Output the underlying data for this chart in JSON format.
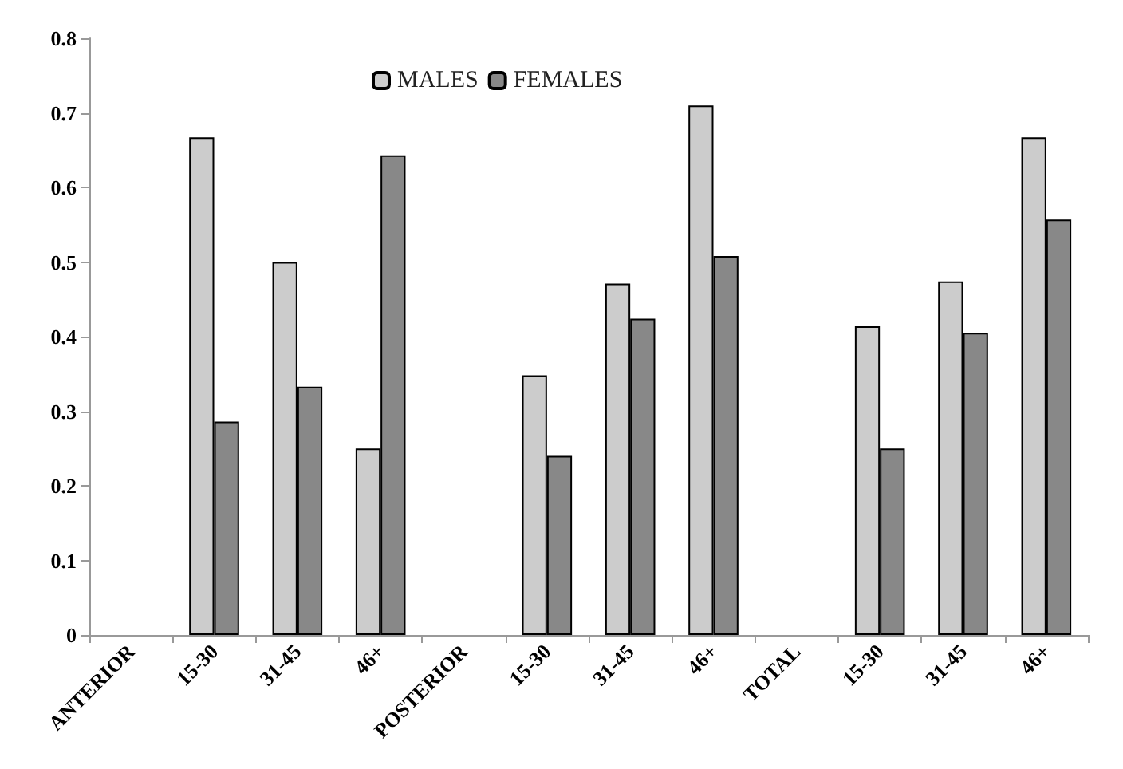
{
  "chart_data": {
    "type": "bar",
    "categories": [
      "ANTERIOR",
      "15-30",
      "31-45",
      "46+",
      "POSTERIOR",
      "15-30",
      "31-45",
      "46+",
      "TOTAL",
      "15-30",
      "31-45",
      "46+"
    ],
    "series": [
      {
        "name": "MALES",
        "color": "#cccccc",
        "values": [
          null,
          0.667,
          0.5,
          0.25,
          null,
          0.348,
          0.471,
          0.71,
          null,
          0.414,
          0.474,
          0.667
        ]
      },
      {
        "name": "FEMALES",
        "color": "#888888",
        "values": [
          null,
          0.286,
          0.333,
          0.643,
          null,
          0.24,
          0.424,
          0.508,
          null,
          0.25,
          0.405,
          0.557
        ]
      }
    ],
    "ylim": [
      0,
      0.8
    ],
    "yticks": [
      0,
      0.1,
      0.2,
      0.3,
      0.4,
      0.5,
      0.6,
      0.7,
      0.8
    ],
    "grid": false,
    "legend": "top"
  }
}
